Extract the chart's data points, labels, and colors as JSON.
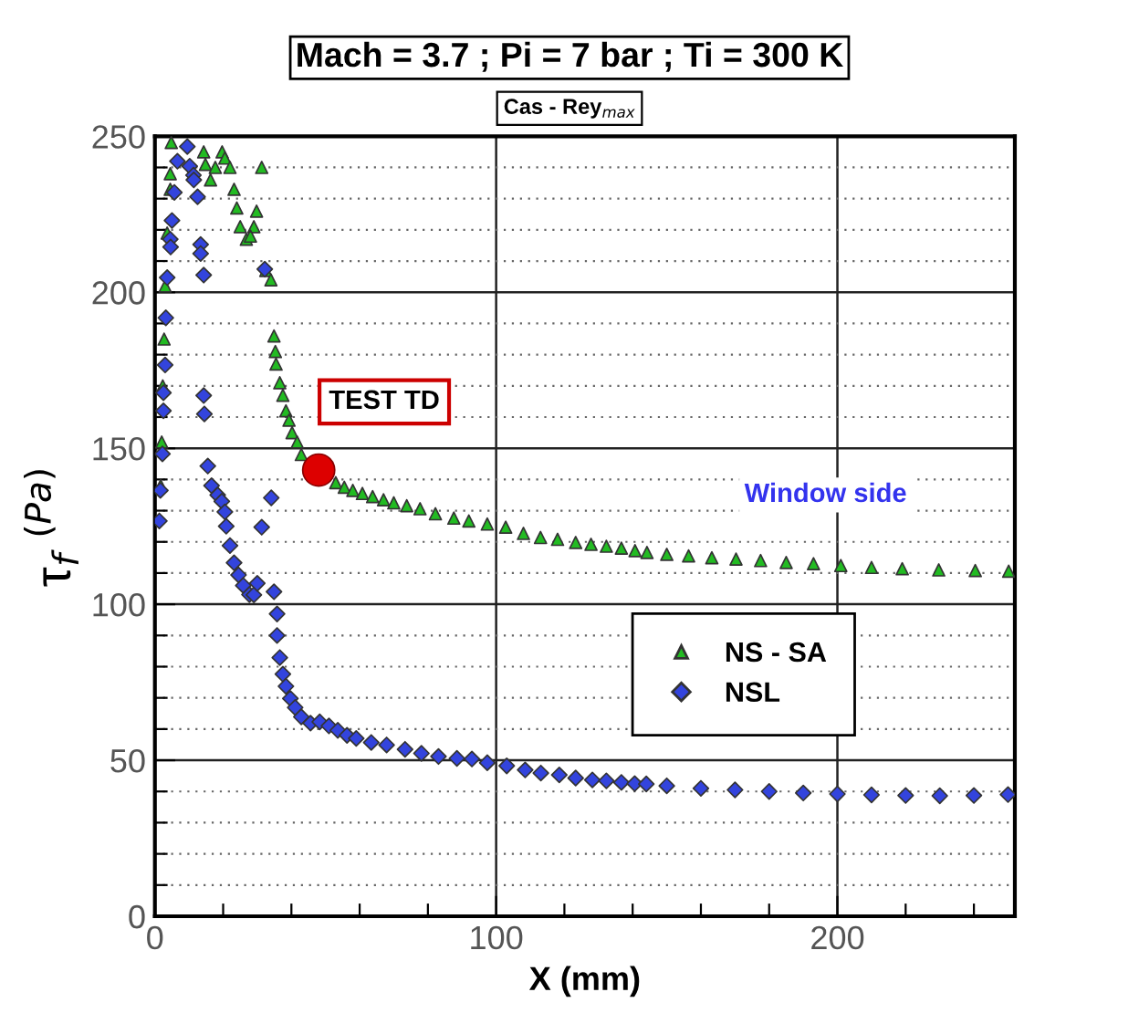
{
  "chart_data": {
    "type": "scatter",
    "title": "Mach = 3.7 ; Pi = 7 bar ; Ti = 300 K",
    "subtitle": "Cas - Rey$_{max}$",
    "xlabel": "X (mm)",
    "ylabel": "τ$_{f}$ $^{(Pa)}$",
    "xlim": [
      0,
      252
    ],
    "ylim": [
      0,
      250
    ],
    "xticks": [
      0,
      {
        "value": 20,
        "label": null
      },
      {
        "value": 40,
        "label": null
      },
      {
        "value": 60,
        "label": null
      },
      {
        "value": 80,
        "label": null
      },
      100,
      {
        "value": 120,
        "label": null
      },
      {
        "value": 140,
        "label": null
      },
      {
        "value": 160,
        "label": null
      },
      {
        "value": 180,
        "label": null
      },
      200,
      {
        "value": 220,
        "label": null
      },
      {
        "value": 240,
        "label": null
      }
    ],
    "yticks": [
      0,
      {
        "value": 10,
        "label": null
      },
      {
        "value": 20,
        "label": null
      },
      {
        "value": 30,
        "label": null
      },
      {
        "value": 40,
        "label": null
      },
      50,
      {
        "value": 60,
        "label": null
      },
      {
        "value": 70,
        "label": null
      },
      {
        "value": 80,
        "label": null
      },
      {
        "value": 90,
        "label": null
      },
      100,
      {
        "value": 110,
        "label": null
      },
      {
        "value": 120,
        "label": null
      },
      {
        "value": 130,
        "label": null
      },
      {
        "value": 140,
        "label": null
      },
      150,
      {
        "value": 160,
        "label": null
      },
      {
        "value": 170,
        "label": null
      },
      {
        "value": 180,
        "label": null
      },
      {
        "value": 190,
        "label": null
      },
      200,
      {
        "value": 210,
        "label": null
      },
      {
        "value": 220,
        "label": null
      },
      {
        "value": 230,
        "label": null
      },
      {
        "value": 240,
        "label": null
      },
      250
    ],
    "grid": true,
    "legend": "right",
    "series": [
      {
        "name": "NS - SA",
        "color": "#22bb22",
        "marker": "triangle",
        "x": [
          4.8,
          4.5,
          4.5,
          3.6,
          3,
          2.7,
          2.3,
          2,
          1.7,
          14.3,
          14.8,
          19.7,
          20.5,
          17.7,
          22,
          16.3,
          31.3,
          23.2,
          24,
          29.8,
          25,
          29,
          26.8,
          28,
          32.5,
          34,
          34.9,
          35.3,
          35.5,
          36.6,
          37.5,
          38.4,
          39.3,
          40.2,
          41.7,
          42.9,
          53,
          55.5,
          58,
          60.8,
          63.8,
          67,
          70,
          73.8,
          77.7,
          82.2,
          87.6,
          92,
          97.4,
          102.8,
          108,
          113,
          118,
          123.3,
          127.8,
          132.3,
          136.7,
          140.7,
          144.2,
          150,
          156.4,
          163.2,
          170.3,
          177.5,
          185,
          193,
          201,
          210,
          219,
          229.7,
          240.4,
          250.2
        ],
        "values": [
          248,
          238,
          233,
          219,
          202,
          185,
          170,
          152,
          138,
          245,
          241,
          245,
          243,
          240,
          240,
          236,
          240,
          233,
          227,
          226,
          221,
          221,
          217,
          218,
          207,
          204,
          186,
          181,
          177,
          171,
          167,
          162,
          159,
          155,
          152,
          148,
          139,
          137.5,
          136.5,
          135.5,
          134.5,
          133.5,
          132.5,
          131.6,
          130.6,
          129,
          127.6,
          126.7,
          125.7,
          124.7,
          122.7,
          121.4,
          120.8,
          119.8,
          119.2,
          118.6,
          118,
          117.2,
          116.6,
          116,
          115.5,
          114.9,
          114.5,
          114,
          113.4,
          113,
          112.4,
          111.8,
          111.4,
          111,
          110.8,
          110.6
        ]
      },
      {
        "name": "NSL",
        "color": "#3344dd",
        "marker": "diamond",
        "x": [
          9.5,
          6.6,
          10.2,
          11.3,
          11.4,
          5.7,
          12.5,
          5,
          4.5,
          4.6,
          13.4,
          13.4,
          14.3,
          3.6,
          32.2,
          3.2,
          3,
          2.5,
          2.5,
          14.3,
          14.5,
          2.2,
          15.5,
          1.6,
          1.3,
          16.6,
          18.4,
          19.6,
          20.5,
          20.9,
          34.1,
          31.3,
          22,
          23.2,
          24.5,
          25.9,
          27.7,
          29,
          30,
          34.9,
          35.8,
          35.8,
          36.6,
          37.5,
          38.4,
          39.7,
          41.1,
          42.9,
          45.6,
          48.3,
          51,
          53.6,
          56.3,
          59,
          63.4,
          67.9,
          73.3,
          78.1,
          83.1,
          88.5,
          92.9,
          97.4,
          103.1,
          108.5,
          113.1,
          118.5,
          123.3,
          128.2,
          132.3,
          136.7,
          140.6,
          144,
          150,
          160,
          170,
          180,
          190,
          200,
          210,
          220,
          230,
          240,
          250
        ],
        "values": [
          246.7,
          242,
          240.4,
          237.5,
          236,
          232,
          230.6,
          223,
          217,
          214.5,
          215.3,
          212.4,
          205.5,
          204.7,
          207.4,
          191.8,
          176.7,
          167.8,
          162,
          166.9,
          161,
          148.2,
          144.3,
          136.5,
          126.7,
          138,
          135,
          133,
          129.6,
          125,
          134.1,
          124.7,
          118.8,
          113.3,
          109.4,
          106,
          103.1,
          103,
          106.7,
          104,
          96.9,
          90,
          82.9,
          77.6,
          73.7,
          69.8,
          66.9,
          63.9,
          61.9,
          62.3,
          61,
          59.6,
          58,
          57,
          55.7,
          54.9,
          53.5,
          52.2,
          51.2,
          50.6,
          50.4,
          49.2,
          48.2,
          46.9,
          45.9,
          45.3,
          44.3,
          43.7,
          43.4,
          42.9,
          42.5,
          42.4,
          41.8,
          41,
          40.5,
          40,
          39.5,
          39.2,
          38.9,
          38.7,
          38.6,
          38.7,
          39
        ]
      },
      {
        "color": "#dd0000",
        "marker": "circle",
        "x": [
          48
        ],
        "values": [
          143
        ]
      }
    ],
    "annotations": [
      {
        "text": "TEST TD",
        "x": 48,
        "y": 143
      },
      "Window side"
    ]
  }
}
